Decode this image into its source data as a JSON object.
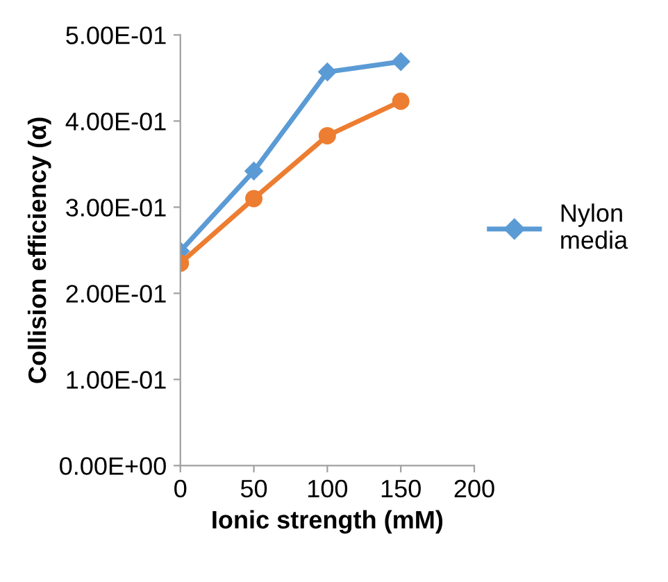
{
  "chart_data": {
    "type": "line",
    "xlabel": "Ionic strength (mM)",
    "ylabel": "Collision efficiency (α)",
    "x": [
      0,
      50,
      100,
      150
    ],
    "series": [
      {
        "name": "Nylon media",
        "color": "#5b9bd5",
        "marker": "diamond",
        "values": [
          0.249,
          0.342,
          0.457,
          0.469
        ]
      },
      {
        "color": "#ed7d31",
        "marker": "circle",
        "values": [
          0.235,
          0.31,
          0.383,
          0.423
        ]
      }
    ],
    "xlim": [
      0,
      200
    ],
    "xticks": [
      0,
      50,
      100,
      150,
      200
    ],
    "ylim": [
      0,
      0.5
    ],
    "yticks": [
      {
        "value": 0,
        "label": "0.00E+00"
      },
      {
        "value": 0.1,
        "label": "1.00E-01"
      },
      {
        "value": 0.2,
        "label": "2.00E-01"
      },
      {
        "value": 0.3,
        "label": "3.00E-01"
      },
      {
        "value": 0.4,
        "label": "4.00E-01"
      },
      {
        "value": 0.5,
        "label": "5.00E-01"
      }
    ],
    "grid": false,
    "legend": "right",
    "line_style": "solid"
  }
}
